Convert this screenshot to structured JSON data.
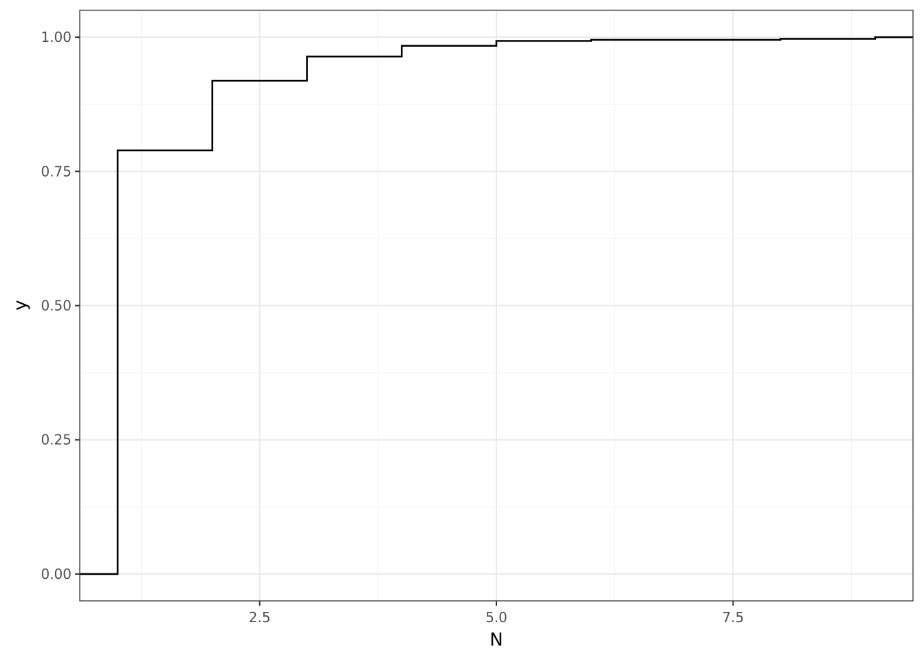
{
  "chart_data": {
    "type": "line",
    "geom": "step",
    "xlabel": "N",
    "ylabel": "y",
    "xlim": [
      0.6,
      9.4
    ],
    "ylim": [
      -0.05,
      1.05
    ],
    "x_ticks": [
      2.5,
      5.0,
      7.5
    ],
    "x_tick_labels": [
      "2.5",
      "5.0",
      "7.5"
    ],
    "x_minor_ticks": [
      1.25,
      3.75,
      6.25,
      8.75
    ],
    "y_ticks": [
      0.0,
      0.25,
      0.5,
      0.75,
      1.0
    ],
    "y_tick_labels": [
      "0.00",
      "0.25",
      "0.50",
      "0.75",
      "1.00"
    ],
    "y_minor_ticks": [
      0.125,
      0.375,
      0.625,
      0.875
    ],
    "grid": true,
    "series": [
      {
        "color": "#000000",
        "x": [
          1,
          2,
          3,
          4,
          5,
          6,
          8,
          9
        ],
        "y": [
          0.789,
          0.919,
          0.964,
          0.984,
          0.993,
          0.995,
          0.997,
          1.0
        ],
        "start_y": 0.0
      }
    ]
  }
}
